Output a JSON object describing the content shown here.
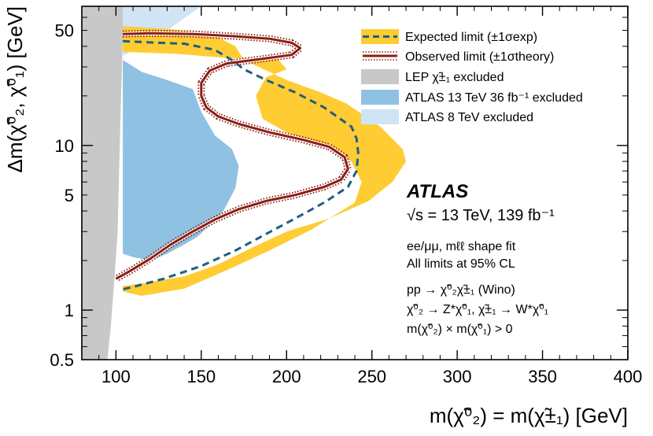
{
  "chart_data": {
    "type": "exclusion-contour",
    "xlabel": "m(χ̃⁰₂) = m(χ̃±₁) [GeV]",
    "ylabel": "Δm(χ̃⁰₂, χ̃⁰₁) [GeV]",
    "xlim": [
      80,
      400
    ],
    "ylim": [
      0.5,
      70
    ],
    "yscale": "log",
    "x_ticks": [
      100,
      150,
      200,
      250,
      300,
      350,
      400
    ],
    "y_ticks": [
      {
        "value": 0.5,
        "label": "0.5"
      },
      {
        "value": 1,
        "label": "1"
      },
      {
        "value": 5,
        "label": "5"
      },
      {
        "value": 10,
        "label": "10"
      },
      {
        "value": 50,
        "label": "50"
      }
    ],
    "colors": {
      "expected_band": "#ffcc33",
      "expected_line": "#1f5f7f",
      "observed_line": "#8a1e14",
      "lep": "#c8c8c8",
      "atlas13_36": "#8fc1e3",
      "atlas8": "#cfe4f5"
    },
    "regions": {
      "lep": [
        [
          80,
          0.5
        ],
        [
          80,
          70
        ],
        [
          104,
          70
        ],
        [
          104,
          45
        ],
        [
          103,
          20
        ],
        [
          102,
          8
        ],
        [
          101,
          3
        ],
        [
          99,
          1.5
        ],
        [
          97,
          0.8
        ],
        [
          95,
          0.5
        ]
      ],
      "atlas8": [
        [
          104,
          70
        ],
        [
          104,
          35
        ],
        [
          125,
          46
        ],
        [
          150,
          70
        ]
      ],
      "atlas13_36": [
        [
          104,
          33
        ],
        [
          115,
          28
        ],
        [
          130,
          25
        ],
        [
          145,
          22
        ],
        [
          150,
          16
        ],
        [
          158,
          11.5
        ],
        [
          168,
          9.5
        ],
        [
          172,
          7.5
        ],
        [
          170,
          5.5
        ],
        [
          163,
          4
        ],
        [
          155,
          3.3
        ],
        [
          148,
          2.8
        ],
        [
          140,
          2.5
        ],
        [
          130,
          2.2
        ],
        [
          120,
          2.0
        ],
        [
          110,
          2.1
        ],
        [
          104,
          2.2
        ]
      ],
      "expected_band": [
        [
          104,
          53
        ],
        [
          130,
          51
        ],
        [
          155,
          48
        ],
        [
          170,
          40
        ],
        [
          175,
          33
        ],
        [
          200,
          25
        ],
        [
          220,
          21
        ],
        [
          235,
          18
        ],
        [
          255,
          13
        ],
        [
          268,
          9.5
        ],
        [
          270,
          8
        ],
        [
          262,
          6
        ],
        [
          248,
          4.6
        ],
        [
          225,
          3.6
        ],
        [
          200,
          3
        ],
        [
          180,
          2.4
        ],
        [
          160,
          1.9
        ],
        [
          140,
          1.6
        ],
        [
          115,
          1.45
        ],
        [
          104,
          1.4
        ],
        [
          104,
          1.3
        ],
        [
          115,
          1.22
        ],
        [
          140,
          1.35
        ],
        [
          165,
          1.75
        ],
        [
          190,
          2.3
        ],
        [
          215,
          3.1
        ],
        [
          240,
          4.5
        ],
        [
          244,
          6
        ],
        [
          238,
          8
        ],
        [
          222,
          10
        ],
        [
          200,
          12
        ],
        [
          186,
          14.5
        ],
        [
          182,
          20
        ],
        [
          188,
          26
        ],
        [
          200,
          29
        ],
        [
          195,
          33.5
        ],
        [
          165,
          34
        ],
        [
          135,
          36
        ],
        [
          104,
          37
        ]
      ]
    },
    "series": [
      {
        "name": "Expected limit",
        "style": "dashed",
        "points": [
          [
            104,
            43
          ],
          [
            125,
            42
          ],
          [
            140,
            41.5
          ],
          [
            158,
            38
          ],
          [
            168,
            33
          ],
          [
            175,
            29
          ],
          [
            188,
            25
          ],
          [
            205,
            21
          ],
          [
            222,
            17
          ],
          [
            238,
            13
          ],
          [
            241,
            11
          ],
          [
            242,
            9
          ],
          [
            241,
            7
          ],
          [
            236,
            5.6
          ],
          [
            222,
            4.5
          ],
          [
            205,
            3.6
          ],
          [
            188,
            2.9
          ],
          [
            170,
            2.3
          ],
          [
            150,
            1.85
          ],
          [
            128,
            1.55
          ],
          [
            112,
            1.4
          ],
          [
            103,
            1.33
          ]
        ]
      },
      {
        "name": "Observed limit",
        "style": "solid",
        "points": [
          [
            104,
            47.5
          ],
          [
            120,
            48
          ],
          [
            145,
            47.5
          ],
          [
            170,
            46
          ],
          [
            190,
            44.5
          ],
          [
            203,
            42
          ],
          [
            208,
            39
          ],
          [
            203,
            35.5
          ],
          [
            185,
            33.5
          ],
          [
            165,
            31.5
          ],
          [
            155,
            28.5
          ],
          [
            150,
            24
          ],
          [
            150,
            20
          ],
          [
            153,
            17
          ],
          [
            160,
            15
          ],
          [
            172,
            13.5
          ],
          [
            190,
            12
          ],
          [
            210,
            10.8
          ],
          [
            225,
            9.8
          ],
          [
            234,
            8.5
          ],
          [
            236,
            7.2
          ],
          [
            232,
            6.2
          ],
          [
            222,
            5.6
          ],
          [
            205,
            5
          ],
          [
            188,
            4.6
          ],
          [
            172,
            4.1
          ],
          [
            158,
            3.55
          ],
          [
            145,
            3
          ],
          [
            132,
            2.5
          ],
          [
            120,
            2.05
          ],
          [
            108,
            1.72
          ],
          [
            100,
            1.55
          ]
        ]
      }
    ],
    "legend": {
      "position": "top-right",
      "entries": [
        {
          "label": "Expected limit (±1σexp)",
          "kind": "band-dashed"
        },
        {
          "label": "Observed limit (±1σtheory)",
          "kind": "line-dotted"
        },
        {
          "label": "LEP χ̃±₁ excluded",
          "kind": "fill-lep"
        },
        {
          "label": "ATLAS 13 TeV 36 fb⁻¹ excluded",
          "kind": "fill-atlas13"
        },
        {
          "label": "ATLAS 8 TeV excluded",
          "kind": "fill-atlas8"
        }
      ]
    },
    "annotations": {
      "experiment": "ATLAS",
      "energy": "√s = 13 TeV, 139 fb⁻¹",
      "lines": [
        "ee/μμ, mℓℓ shape fit",
        "All limits at 95% CL",
        "pp → χ̃⁰₂χ̃±₁ (Wino)",
        "χ̃⁰₂ → Z*χ̃⁰₁, χ̃±₁ → W*χ̃⁰₁",
        "m(χ̃⁰₂) × m(χ̃⁰₁) > 0"
      ]
    }
  }
}
